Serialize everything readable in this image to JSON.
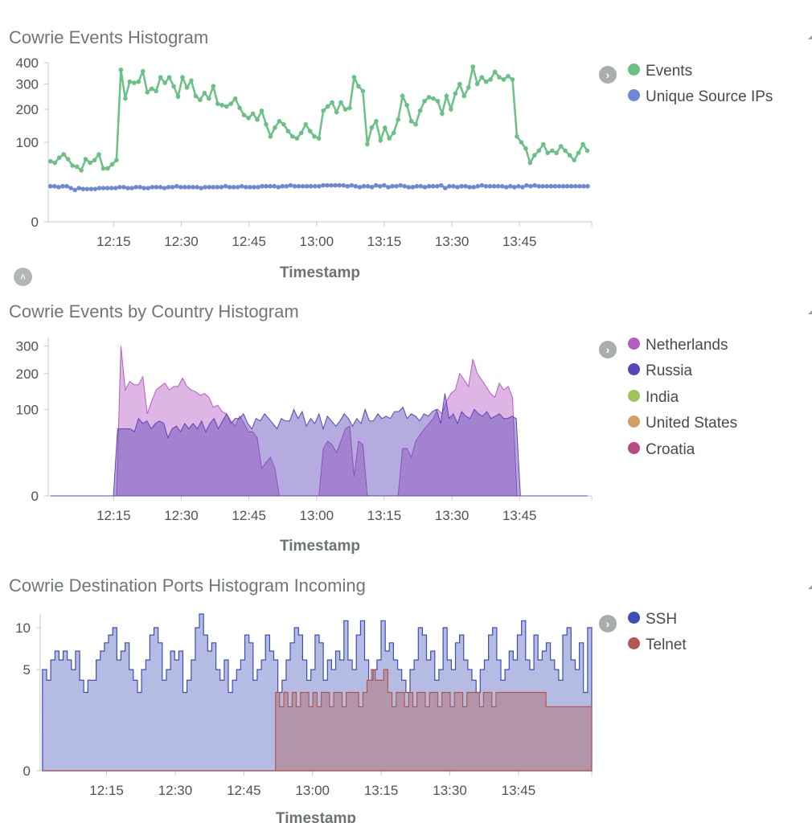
{
  "icons": {
    "legend_toggle": "chevron-right-icon",
    "collapse_toggle": "chevron-up-icon",
    "corner": "resize-corner-icon"
  },
  "panels": [
    {
      "title": "Cowrie Events Histogram",
      "legend": [
        {
          "label": "Events",
          "color": "#6ac185"
        },
        {
          "label": "Unique Source IPs",
          "color": "#6e88d8"
        }
      ]
    },
    {
      "title": "Cowrie Events by Country Histogram",
      "legend": [
        {
          "label": "Netherlands",
          "color": "#b55cc4"
        },
        {
          "label": "Russia",
          "color": "#5b45b8"
        },
        {
          "label": "India",
          "color": "#9dc35a"
        },
        {
          "label": "United States",
          "color": "#d69f62"
        },
        {
          "label": "Croatia",
          "color": "#b84a83"
        }
      ]
    },
    {
      "title": "Cowrie Destination Ports Histogram Incoming",
      "legend": [
        {
          "label": "SSH",
          "color": "#3b4fb5"
        },
        {
          "label": "Telnet",
          "color": "#b4574f"
        }
      ]
    }
  ],
  "chart_data": [
    {
      "type": "line",
      "title": "Cowrie Events Histogram",
      "xlabel": "Timestamp",
      "ylabel": "",
      "x_ticks": [
        "12:15",
        "12:30",
        "12:45",
        "13:00",
        "13:15",
        "13:30",
        "13:45"
      ],
      "y_ticks": [
        0,
        100,
        200,
        300,
        400
      ],
      "y_scale": "sqrt",
      "ylim": [
        0,
        400
      ],
      "x_start": "12:01",
      "x_step_min": 1,
      "grid": false,
      "legend_position": "right",
      "series": [
        {
          "name": "Events",
          "color": "#6ac185",
          "values": [
            58,
            55,
            65,
            72,
            62,
            50,
            48,
            42,
            62,
            55,
            60,
            72,
            45,
            45,
            52,
            60,
            365,
            240,
            310,
            305,
            310,
            358,
            265,
            280,
            270,
            330,
            305,
            330,
            290,
            248,
            330,
            285,
            315,
            250,
            235,
            262,
            240,
            290,
            220,
            215,
            210,
            220,
            240,
            205,
            180,
            170,
            185,
            165,
            195,
            150,
            115,
            140,
            160,
            150,
            130,
            115,
            110,
            125,
            150,
            130,
            115,
            110,
            195,
            210,
            225,
            190,
            225,
            200,
            205,
            330,
            290,
            270,
            95,
            140,
            160,
            105,
            140,
            110,
            125,
            165,
            250,
            215,
            160,
            150,
            195,
            230,
            245,
            240,
            230,
            185,
            250,
            200,
            260,
            300,
            250,
            285,
            380,
            300,
            330,
            310,
            320,
            355,
            330,
            320,
            335,
            320,
            115,
            100,
            85,
            55,
            70,
            80,
            95,
            75,
            80,
            75,
            90,
            80,
            70,
            60,
            75,
            95,
            80
          ]
        },
        {
          "name": "Unique Source IPs",
          "color": "#6e88d8",
          "values": [
            20,
            20,
            19,
            20,
            20,
            18,
            16,
            18,
            17,
            17,
            17,
            17,
            18,
            18,
            18,
            18,
            18,
            19,
            19,
            18,
            18,
            19,
            19,
            18,
            18,
            19,
            19,
            19,
            18,
            19,
            19,
            20,
            19,
            19,
            19,
            19,
            19,
            18,
            19,
            19,
            19,
            19,
            19,
            20,
            19,
            19,
            19,
            20,
            19,
            19,
            19,
            19,
            20,
            20,
            20,
            20,
            19,
            20,
            20,
            21,
            20,
            20,
            20,
            20,
            20,
            20,
            20,
            21,
            21,
            21,
            21,
            21,
            21,
            20,
            21,
            20,
            19,
            20,
            20,
            19,
            21,
            20,
            21,
            19,
            20,
            20,
            21,
            20,
            19,
            19,
            20,
            20,
            19,
            20,
            20,
            20,
            21,
            18,
            20,
            20,
            19,
            20,
            20,
            19,
            19,
            20,
            21,
            20,
            20,
            20,
            20,
            20,
            19,
            20,
            19,
            20,
            19,
            21,
            20,
            21,
            20,
            20,
            20,
            20,
            20,
            20,
            20,
            20,
            20,
            20,
            20,
            20,
            20
          ]
        }
      ]
    },
    {
      "type": "area",
      "title": "Cowrie Events by Country Histogram",
      "xlabel": "Timestamp",
      "ylabel": "",
      "x_ticks": [
        "12:15",
        "12:30",
        "12:45",
        "13:00",
        "13:15",
        "13:30",
        "13:45"
      ],
      "y_ticks": [
        0,
        100,
        200,
        300
      ],
      "y_scale": "sqrt",
      "ylim": [
        0,
        335
      ],
      "x_start": "12:01",
      "x_step_min": 1,
      "grid": false,
      "legend_position": "right",
      "series": [
        {
          "name": "Netherlands",
          "color": "#b55cc4",
          "values": [
            0,
            0,
            0,
            0,
            0,
            0,
            0,
            0,
            0,
            0,
            0,
            0,
            0,
            0,
            0,
            0,
            300,
            150,
            175,
            165,
            165,
            190,
            90,
            120,
            150,
            160,
            170,
            150,
            160,
            160,
            185,
            160,
            150,
            145,
            135,
            140,
            130,
            105,
            110,
            95,
            90,
            75,
            65,
            85,
            70,
            55,
            55,
            45,
            10,
            15,
            20,
            10,
            0,
            0,
            0,
            0,
            0,
            0,
            0,
            0,
            0,
            0,
            30,
            40,
            35,
            25,
            40,
            60,
            65,
            5,
            40,
            35,
            0,
            0,
            0,
            0,
            0,
            0,
            0,
            0,
            30,
            30,
            20,
            40,
            50,
            60,
            70,
            80,
            100,
            90,
            120,
            140,
            150,
            200,
            180,
            160,
            250,
            200,
            180,
            160,
            140,
            130,
            170,
            150,
            160,
            130,
            0,
            0,
            0,
            0,
            0,
            0,
            0,
            0,
            0,
            0,
            0,
            0,
            0,
            0,
            0,
            0,
            0
          ]
        },
        {
          "name": "Russia",
          "color": "#5b45b8",
          "values": [
            0,
            0,
            0,
            0,
            0,
            0,
            0,
            0,
            0,
            0,
            0,
            0,
            0,
            0,
            0,
            0,
            60,
            60,
            60,
            60,
            55,
            80,
            70,
            75,
            60,
            70,
            75,
            70,
            45,
            60,
            65,
            55,
            70,
            60,
            70,
            60,
            75,
            55,
            70,
            80,
            60,
            75,
            90,
            70,
            80,
            80,
            90,
            70,
            60,
            80,
            75,
            90,
            80,
            70,
            60,
            80,
            75,
            75,
            100,
            80,
            95,
            65,
            80,
            70,
            90,
            60,
            85,
            75,
            65,
            75,
            90,
            80,
            65,
            80,
            70,
            100,
            75,
            75,
            90,
            80,
            85,
            80,
            95,
            95,
            105,
            80,
            90,
            85,
            75,
            90,
            85,
            95,
            100,
            70,
            140,
            80,
            90,
            70,
            95,
            85,
            80,
            100,
            90,
            85,
            95,
            80,
            85,
            90,
            80,
            80,
            85,
            80,
            0,
            0,
            0,
            0,
            0,
            0,
            0,
            0,
            0,
            0,
            0,
            0,
            0,
            0,
            0,
            0,
            0
          ]
        },
        {
          "name": "India",
          "color": "#9dc35a",
          "values": []
        },
        {
          "name": "United States",
          "color": "#d69f62",
          "values": []
        },
        {
          "name": "Croatia",
          "color": "#b84a83",
          "values": []
        }
      ]
    },
    {
      "type": "area",
      "title": "Cowrie Destination Ports Histogram Incoming",
      "xlabel": "Timestamp",
      "ylabel": "",
      "x_ticks": [
        "12:15",
        "12:30",
        "12:45",
        "13:00",
        "13:15",
        "13:30",
        "13:45"
      ],
      "y_ticks": [
        0,
        5,
        10
      ],
      "y_scale": "sqrt",
      "ylim": [
        0,
        12
      ],
      "x_start": "12:01",
      "x_step_min": 1,
      "grid": false,
      "legend_position": "right",
      "series": [
        {
          "name": "SSH",
          "color": "#3b4fb5",
          "values": [
            5,
            4,
            6,
            7,
            6,
            7,
            6,
            5,
            7,
            4,
            3,
            4,
            4,
            6,
            7,
            8,
            9,
            10,
            6,
            7,
            8,
            5,
            4,
            3,
            5,
            6,
            9,
            10,
            8,
            4,
            5,
            7,
            6,
            7,
            3,
            4,
            6,
            10,
            12,
            9,
            7,
            8,
            5,
            4,
            6,
            3,
            4,
            5,
            6,
            9,
            8,
            4,
            5,
            6,
            9,
            7,
            6,
            3,
            4,
            6,
            8,
            10,
            9,
            6,
            4,
            5,
            9,
            8,
            4,
            6,
            5,
            7,
            6,
            11,
            6,
            5,
            9,
            11,
            6,
            4,
            5,
            6,
            11,
            7,
            8,
            6,
            5,
            4,
            3,
            5,
            6,
            10,
            9,
            6,
            7,
            4,
            5,
            10,
            6,
            5,
            8,
            9,
            6,
            5,
            4,
            3,
            5,
            6,
            9,
            10,
            6,
            4,
            5,
            7,
            6,
            9,
            11,
            6,
            5,
            9,
            6,
            7,
            8,
            6,
            5,
            4,
            9,
            10,
            6,
            5,
            8,
            3,
            10
          ]
        },
        {
          "name": "Telnet",
          "color": "#b4574f",
          "values": [
            0,
            0,
            0,
            0,
            0,
            0,
            0,
            0,
            0,
            0,
            0,
            0,
            0,
            0,
            0,
            0,
            0,
            0,
            0,
            0,
            0,
            0,
            0,
            0,
            0,
            0,
            0,
            0,
            0,
            0,
            0,
            0,
            0,
            0,
            0,
            0,
            0,
            0,
            0,
            0,
            0,
            0,
            0,
            0,
            0,
            0,
            0,
            0,
            0,
            0,
            0,
            0,
            0,
            0,
            0,
            0,
            3,
            2,
            3,
            2,
            3,
            2,
            3,
            3,
            2,
            3,
            2,
            3,
            3,
            2,
            3,
            3,
            2,
            3,
            3,
            3,
            2,
            3,
            4,
            5,
            4,
            4,
            5,
            3,
            2,
            3,
            3,
            2,
            3,
            2,
            3,
            3,
            2,
            3,
            3,
            2,
            3,
            3,
            2,
            3,
            3,
            2,
            3,
            3,
            3,
            2,
            3,
            3,
            2,
            3,
            3,
            3,
            3,
            3,
            3,
            3,
            3,
            3,
            3,
            3,
            3,
            2,
            2,
            2,
            2,
            2,
            2,
            2,
            2,
            2,
            2,
            2
          ]
        }
      ]
    }
  ]
}
